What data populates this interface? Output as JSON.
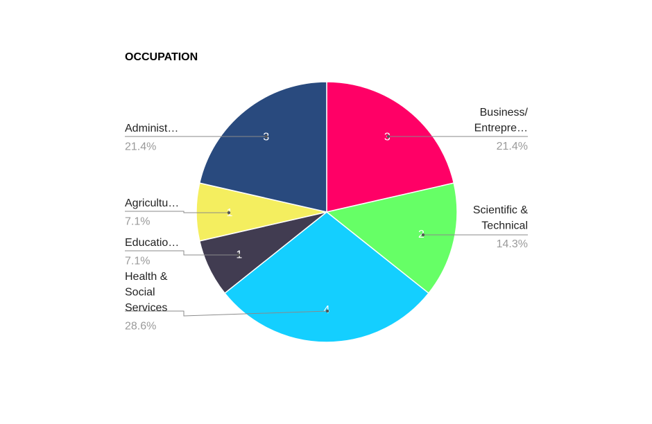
{
  "chart_data": {
    "type": "pie",
    "title": "OCCUPATION",
    "slices": [
      {
        "label_lines": [
          "Business/",
          "Entrepre…"
        ],
        "value": 3,
        "value_label": "3",
        "percent": "21.4%",
        "color": "#ff0066"
      },
      {
        "label_lines": [
          "Scientific &",
          "Technical"
        ],
        "value": 2,
        "value_label": "2",
        "percent": "14.3%",
        "color": "#66ff66"
      },
      {
        "label_lines": [
          "Health &",
          "Social",
          "Services"
        ],
        "value": 4,
        "value_label": "4",
        "percent": "28.6%",
        "color": "#14cfff"
      },
      {
        "label_lines": [
          "Educatio…"
        ],
        "value": 1,
        "value_label": "1",
        "percent": "7.1%",
        "color": "#413c51"
      },
      {
        "label_lines": [
          "Agricultu…"
        ],
        "value": 1,
        "value_label": "1",
        "percent": "7.1%",
        "color": "#f4ee5f"
      },
      {
        "label_lines": [
          "Administ…"
        ],
        "value": 3,
        "value_label": "3",
        "percent": "21.4%",
        "color": "#294a7e"
      }
    ]
  }
}
